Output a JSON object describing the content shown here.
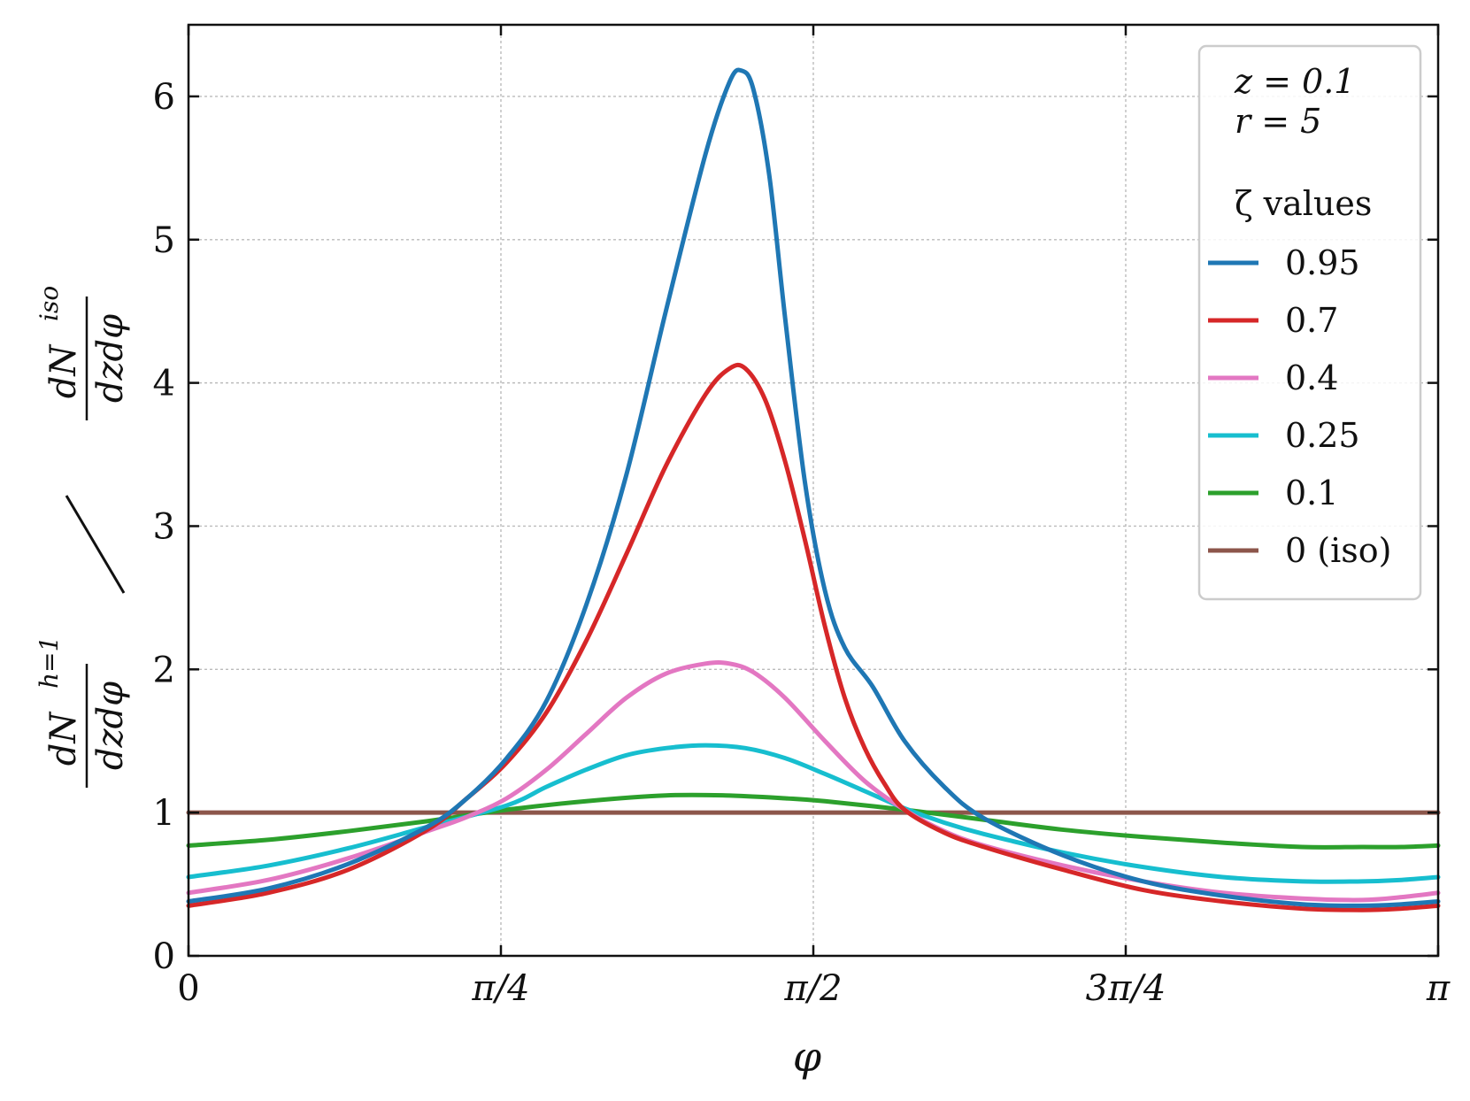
{
  "chart_data": {
    "type": "line",
    "xlabel": "φ",
    "ylabel": {
      "num_top": "dN",
      "num_sup": "h=1",
      "num_bottom": "dzdφ",
      "den_top": "dN",
      "den_sup": "iso",
      "den_bottom": "dzdφ",
      "slash": "/"
    },
    "xlim": [
      0,
      3.14159
    ],
    "ylim": [
      0,
      6.5
    ],
    "x_ticks": [
      {
        "value": 0,
        "label": "0"
      },
      {
        "value": 0.785398,
        "label": "π/4"
      },
      {
        "value": 1.570796,
        "label": "π/2"
      },
      {
        "value": 2.356194,
        "label": "3π/4"
      },
      {
        "value": 3.14159,
        "label": "π"
      }
    ],
    "y_ticks": [
      {
        "value": 0,
        "label": "0"
      },
      {
        "value": 1,
        "label": "1"
      },
      {
        "value": 2,
        "label": "2"
      },
      {
        "value": 3,
        "label": "3"
      },
      {
        "value": 4,
        "label": "4"
      },
      {
        "value": 5,
        "label": "5"
      },
      {
        "value": 6,
        "label": "6"
      }
    ],
    "grid": true,
    "legend": {
      "position": "top-right",
      "params": [
        "z = 0.1",
        "r = 5"
      ],
      "title": "ζ values"
    },
    "series": [
      {
        "name": "0.95",
        "color": "#1f77b4",
        "points": [
          [
            0,
            0.38
          ],
          [
            0.2,
            0.47
          ],
          [
            0.4,
            0.64
          ],
          [
            0.6,
            0.9
          ],
          [
            0.7,
            1.1
          ],
          [
            0.8,
            1.38
          ],
          [
            0.9,
            1.78
          ],
          [
            1.0,
            2.45
          ],
          [
            1.1,
            3.35
          ],
          [
            1.2,
            4.5
          ],
          [
            1.3,
            5.6
          ],
          [
            1.36,
            6.1
          ],
          [
            1.39,
            6.18
          ],
          [
            1.42,
            6.05
          ],
          [
            1.46,
            5.45
          ],
          [
            1.5,
            4.45
          ],
          [
            1.55,
            3.3
          ],
          [
            1.6,
            2.55
          ],
          [
            1.65,
            2.15
          ],
          [
            1.72,
            1.88
          ],
          [
            1.8,
            1.5
          ],
          [
            1.9,
            1.18
          ],
          [
            2.0,
            0.96
          ],
          [
            2.2,
            0.7
          ],
          [
            2.4,
            0.52
          ],
          [
            2.6,
            0.42
          ],
          [
            2.8,
            0.36
          ],
          [
            2.95,
            0.35
          ],
          [
            3.05,
            0.36
          ],
          [
            3.14159,
            0.38
          ]
        ]
      },
      {
        "name": "0.7",
        "color": "#d62728",
        "points": [
          [
            0,
            0.35
          ],
          [
            0.2,
            0.44
          ],
          [
            0.4,
            0.6
          ],
          [
            0.6,
            0.88
          ],
          [
            0.7,
            1.1
          ],
          [
            0.8,
            1.35
          ],
          [
            0.9,
            1.7
          ],
          [
            1.0,
            2.2
          ],
          [
            1.1,
            2.8
          ],
          [
            1.2,
            3.42
          ],
          [
            1.3,
            3.92
          ],
          [
            1.36,
            4.1
          ],
          [
            1.4,
            4.1
          ],
          [
            1.45,
            3.88
          ],
          [
            1.5,
            3.45
          ],
          [
            1.55,
            2.9
          ],
          [
            1.6,
            2.3
          ],
          [
            1.65,
            1.8
          ],
          [
            1.7,
            1.45
          ],
          [
            1.75,
            1.2
          ],
          [
            1.8,
            1.02
          ],
          [
            1.9,
            0.86
          ],
          [
            2.0,
            0.76
          ],
          [
            2.2,
            0.6
          ],
          [
            2.4,
            0.46
          ],
          [
            2.6,
            0.38
          ],
          [
            2.8,
            0.33
          ],
          [
            2.95,
            0.32
          ],
          [
            3.05,
            0.33
          ],
          [
            3.14159,
            0.35
          ]
        ]
      },
      {
        "name": "0.4",
        "color": "#e377c2",
        "points": [
          [
            0,
            0.44
          ],
          [
            0.2,
            0.53
          ],
          [
            0.4,
            0.68
          ],
          [
            0.6,
            0.87
          ],
          [
            0.7,
            0.97
          ],
          [
            0.8,
            1.1
          ],
          [
            0.9,
            1.3
          ],
          [
            1.0,
            1.55
          ],
          [
            1.1,
            1.8
          ],
          [
            1.2,
            1.97
          ],
          [
            1.3,
            2.04
          ],
          [
            1.36,
            2.04
          ],
          [
            1.42,
            1.98
          ],
          [
            1.5,
            1.8
          ],
          [
            1.6,
            1.5
          ],
          [
            1.7,
            1.22
          ],
          [
            1.8,
            1.02
          ],
          [
            1.9,
            0.87
          ],
          [
            2.0,
            0.77
          ],
          [
            2.2,
            0.63
          ],
          [
            2.4,
            0.52
          ],
          [
            2.6,
            0.44
          ],
          [
            2.8,
            0.4
          ],
          [
            2.95,
            0.39
          ],
          [
            3.05,
            0.41
          ],
          [
            3.14159,
            0.44
          ]
        ]
      },
      {
        "name": "0.25",
        "color": "#17becf",
        "points": [
          [
            0,
            0.55
          ],
          [
            0.2,
            0.63
          ],
          [
            0.4,
            0.75
          ],
          [
            0.6,
            0.9
          ],
          [
            0.8,
            1.05
          ],
          [
            0.9,
            1.18
          ],
          [
            1.0,
            1.3
          ],
          [
            1.1,
            1.4
          ],
          [
            1.2,
            1.45
          ],
          [
            1.3,
            1.47
          ],
          [
            1.4,
            1.45
          ],
          [
            1.5,
            1.38
          ],
          [
            1.6,
            1.27
          ],
          [
            1.7,
            1.15
          ],
          [
            1.8,
            1.03
          ],
          [
            1.9,
            0.93
          ],
          [
            2.0,
            0.85
          ],
          [
            2.2,
            0.72
          ],
          [
            2.4,
            0.62
          ],
          [
            2.6,
            0.55
          ],
          [
            2.8,
            0.52
          ],
          [
            2.95,
            0.52
          ],
          [
            3.05,
            0.53
          ],
          [
            3.14159,
            0.55
          ]
        ]
      },
      {
        "name": "0.1",
        "color": "#2ca02c",
        "points": [
          [
            0,
            0.77
          ],
          [
            0.2,
            0.81
          ],
          [
            0.4,
            0.87
          ],
          [
            0.6,
            0.94
          ],
          [
            0.8,
            1.02
          ],
          [
            1.0,
            1.08
          ],
          [
            1.2,
            1.12
          ],
          [
            1.35,
            1.12
          ],
          [
            1.5,
            1.1
          ],
          [
            1.6,
            1.08
          ],
          [
            1.8,
            1.02
          ],
          [
            2.0,
            0.95
          ],
          [
            2.2,
            0.88
          ],
          [
            2.4,
            0.83
          ],
          [
            2.6,
            0.79
          ],
          [
            2.8,
            0.76
          ],
          [
            2.95,
            0.76
          ],
          [
            3.05,
            0.76
          ],
          [
            3.14159,
            0.77
          ]
        ]
      },
      {
        "name": "0 (iso)",
        "color": "#8c564b",
        "points": [
          [
            0,
            1.0
          ],
          [
            3.14159,
            1.0
          ]
        ]
      }
    ]
  }
}
